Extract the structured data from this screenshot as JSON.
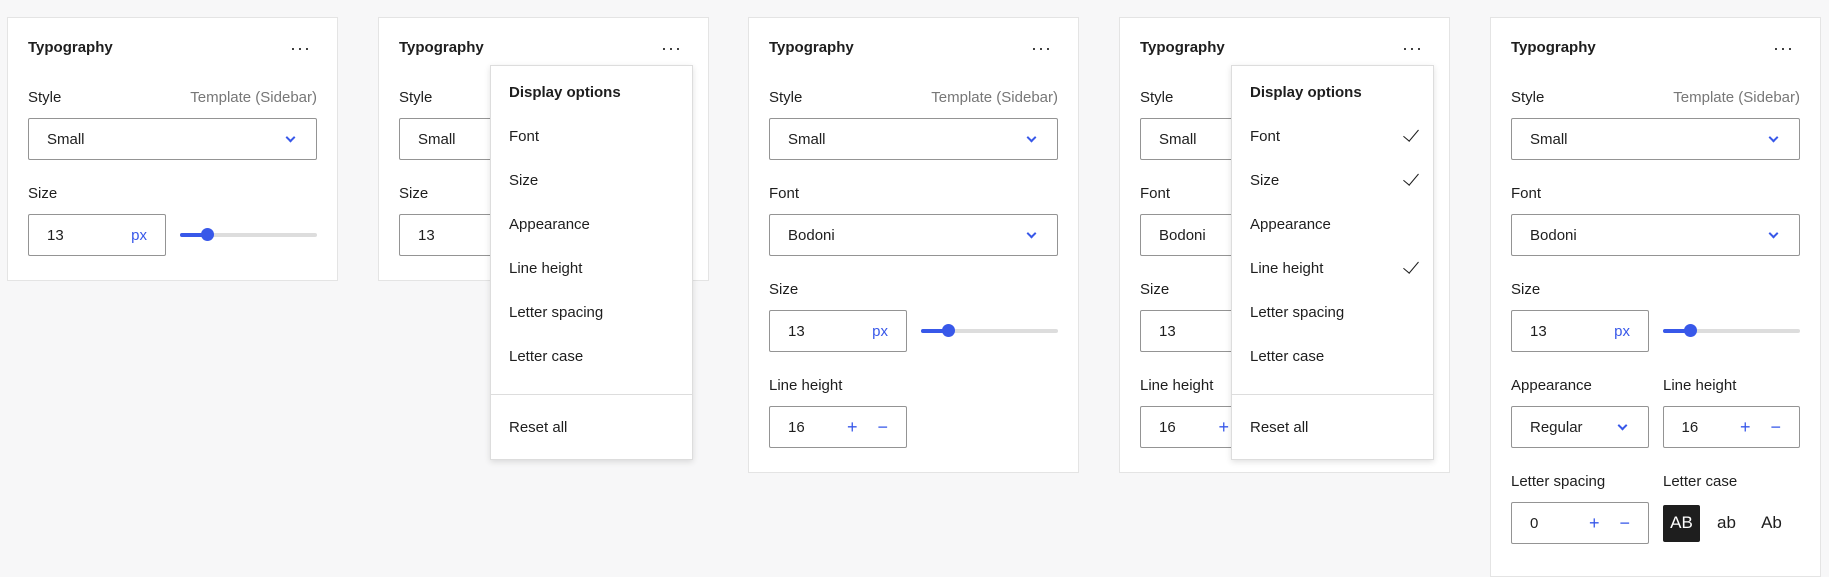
{
  "title": "Typography",
  "style_label": "Style",
  "style_source": "Template (Sidebar)",
  "style_value": "Small",
  "font_label": "Font",
  "font_value": "Bodoni",
  "size_label": "Size",
  "size_value": "13",
  "size_unit": "px",
  "size_slider_fraction": 0.2,
  "appearance_label": "Appearance",
  "appearance_value": "Regular",
  "line_height_label": "Line height",
  "line_height_value": "16",
  "letter_spacing_label": "Letter spacing",
  "letter_spacing_value": "0",
  "letter_case_label": "Letter case",
  "letter_case_options": [
    "AB",
    "ab",
    "Ab"
  ],
  "letter_case_selected": "AB",
  "plus": "+",
  "minus": "−",
  "more": "···",
  "menu": {
    "heading": "Display options",
    "items": [
      "Font",
      "Size",
      "Appearance",
      "Line height",
      "Letter spacing",
      "Letter case"
    ],
    "reset": "Reset all"
  },
  "menu_checked_panel4": [
    "Font",
    "Size",
    "Line height"
  ],
  "accent": "#3858e9"
}
